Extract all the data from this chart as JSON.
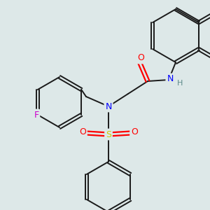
{
  "background_color": "#dde8e8",
  "bond_color": "#1a1a1a",
  "atom_colors": {
    "N": "#0000ff",
    "O": "#ff0000",
    "S": "#cccc00",
    "F": "#cc00cc",
    "H": "#5c8a8a"
  },
  "figsize": [
    3.0,
    3.0
  ],
  "dpi": 100
}
